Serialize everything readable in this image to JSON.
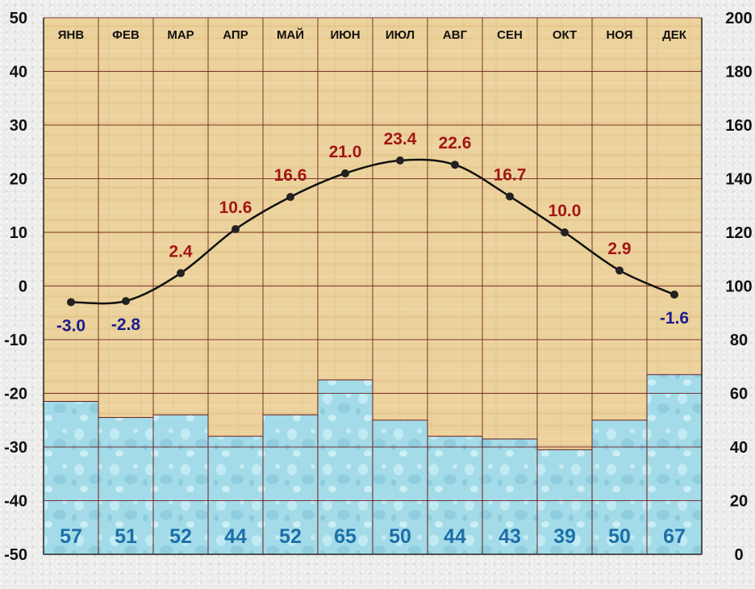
{
  "chart_data": {
    "type": "bar+line",
    "categories": [
      "ЯНВ",
      "ФЕВ",
      "МАР",
      "АПР",
      "МАЙ",
      "ИЮН",
      "ИЮЛ",
      "АВГ",
      "СЕН",
      "ОКТ",
      "НОЯ",
      "ДЕК"
    ],
    "series": [
      {
        "type": "bar",
        "axis": "right",
        "values": [
          57,
          51,
          52,
          44,
          52,
          65,
          50,
          44,
          43,
          39,
          50,
          67
        ]
      },
      {
        "type": "line",
        "axis": "left",
        "values": [
          -3.0,
          -2.8,
          2.4,
          10.6,
          16.6,
          21.0,
          23.4,
          22.6,
          16.7,
          10.0,
          2.9,
          -1.6
        ]
      }
    ],
    "left_axis": {
      "min": -50,
      "max": 50,
      "ticks": [
        "50",
        "40",
        "30",
        "20",
        "10",
        "0",
        "-10",
        "-20",
        "-30",
        "-40",
        "-50"
      ]
    },
    "right_axis": {
      "min": 0,
      "max": 200,
      "ticks": [
        "200",
        "180",
        "160",
        "140",
        "120",
        "100",
        "80",
        "60",
        "40",
        "20",
        "0"
      ]
    },
    "temperature_labels": [
      "-3.0",
      "-2.8",
      "2.4",
      "10.6",
      "16.6",
      "21.0",
      "23.4",
      "22.6",
      "16.7",
      "10.0",
      "2.9",
      "-1.6"
    ],
    "precipitation_labels": [
      "57",
      "51",
      "52",
      "44",
      "52",
      "65",
      "50",
      "44",
      "43",
      "39",
      "50",
      "67"
    ],
    "grid": true,
    "colors": {
      "background_area": "#ecd29c",
      "bar_fill": "#9fd8e6",
      "line": "#111111",
      "positive_label": "#a31515",
      "negative_label": "#1b1b8f",
      "precip_label": "#1c6fa8",
      "gridline": "#6b1a1a"
    }
  }
}
